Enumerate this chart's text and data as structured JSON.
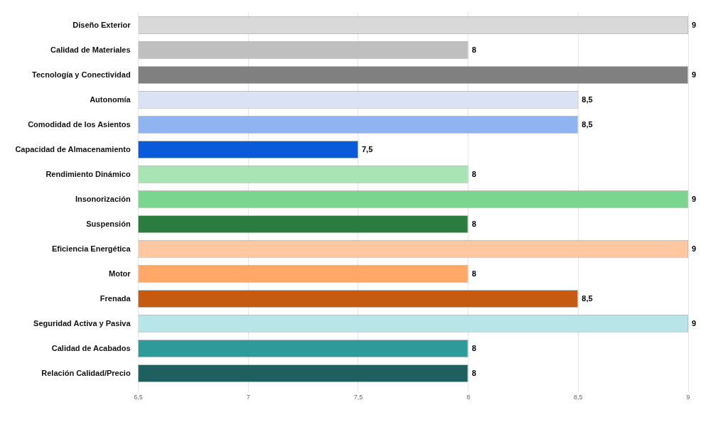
{
  "chart_data": {
    "type": "bar",
    "orientation": "horizontal",
    "categories": [
      "Diseño Exterior",
      "Calidad de Materiales",
      "Tecnología y Conectividad",
      "Autonomía",
      "Comodidad de los Asientos",
      "Capacidad de Almacenamiento",
      "Rendimiento Dinámico",
      "Insonorización",
      "Suspensión",
      "Eficiencia Energética",
      "Motor",
      "Frenada",
      "Seguridad Activa y Pasiva",
      "Calidad de Acabados",
      "Relación Calidad/Precio"
    ],
    "values": [
      9,
      8,
      9,
      8.5,
      8.5,
      7.5,
      8,
      9,
      8,
      9,
      8,
      8.5,
      9,
      8,
      8
    ],
    "colors": [
      "#d9d9d9",
      "#bfbfbf",
      "#808080",
      "#dae3f3",
      "#8fb4f0",
      "#0b5ad9",
      "#a9e4b5",
      "#7ad68f",
      "#2a7d3e",
      "#ffc8a0",
      "#ffa868",
      "#c55a11",
      "#b8e6e8",
      "#2e9a9a",
      "#1e6060"
    ],
    "xlim": [
      6.5,
      9
    ],
    "xticks": [
      {
        "value": 6.5,
        "label": "6,5"
      },
      7,
      {
        "value": 7.5,
        "label": "7,5"
      },
      8,
      {
        "value": 8.5,
        "label": "8,5"
      },
      9
    ],
    "value_labels": [
      "9",
      "8",
      "9",
      "8,5",
      "8,5",
      "7,5",
      "8",
      "9",
      "8",
      "9",
      "8",
      "8,5",
      "9",
      "8",
      "8"
    ],
    "grid": "x"
  }
}
